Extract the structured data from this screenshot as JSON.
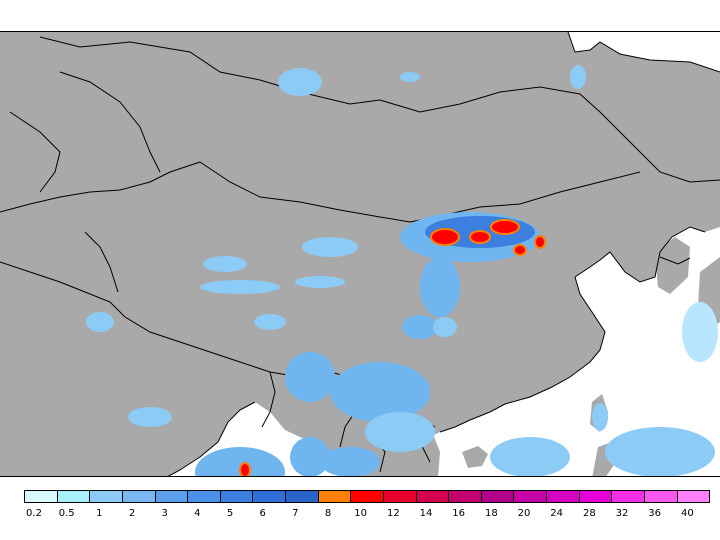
{
  "map": {
    "colors": {
      "land": "#a9a9a9",
      "sea": "#ffffff",
      "border": "#000000",
      "precip_light": "#b8e6ff",
      "precip_mid": "#6fb5f0",
      "precip_dense": "#3c7fe0",
      "precip_heavy": "#ff0000",
      "precip_orange": "#ff7f00"
    }
  },
  "legend": {
    "tick_labels": [
      "0.2",
      "0.5",
      "1",
      "2",
      "3",
      "4",
      "5",
      "6",
      "7",
      "8",
      "10",
      "12",
      "14",
      "16",
      "18",
      "20",
      "24",
      "28",
      "32",
      "36",
      "40"
    ],
    "swatch_colors": [
      "#d8fbff",
      "#a5f0fa",
      "#8ccbf5",
      "#78b7f0",
      "#5aa0ec",
      "#4b91e8",
      "#3c7fe0",
      "#2f6fd8",
      "#2763c8",
      "#ff7f00",
      "#ff0000",
      "#e6002d",
      "#d4004f",
      "#c2006e",
      "#b3008a",
      "#c400a6",
      "#d600c0",
      "#e600d8",
      "#f22ee6",
      "#f858ee",
      "#ff80f8"
    ]
  }
}
